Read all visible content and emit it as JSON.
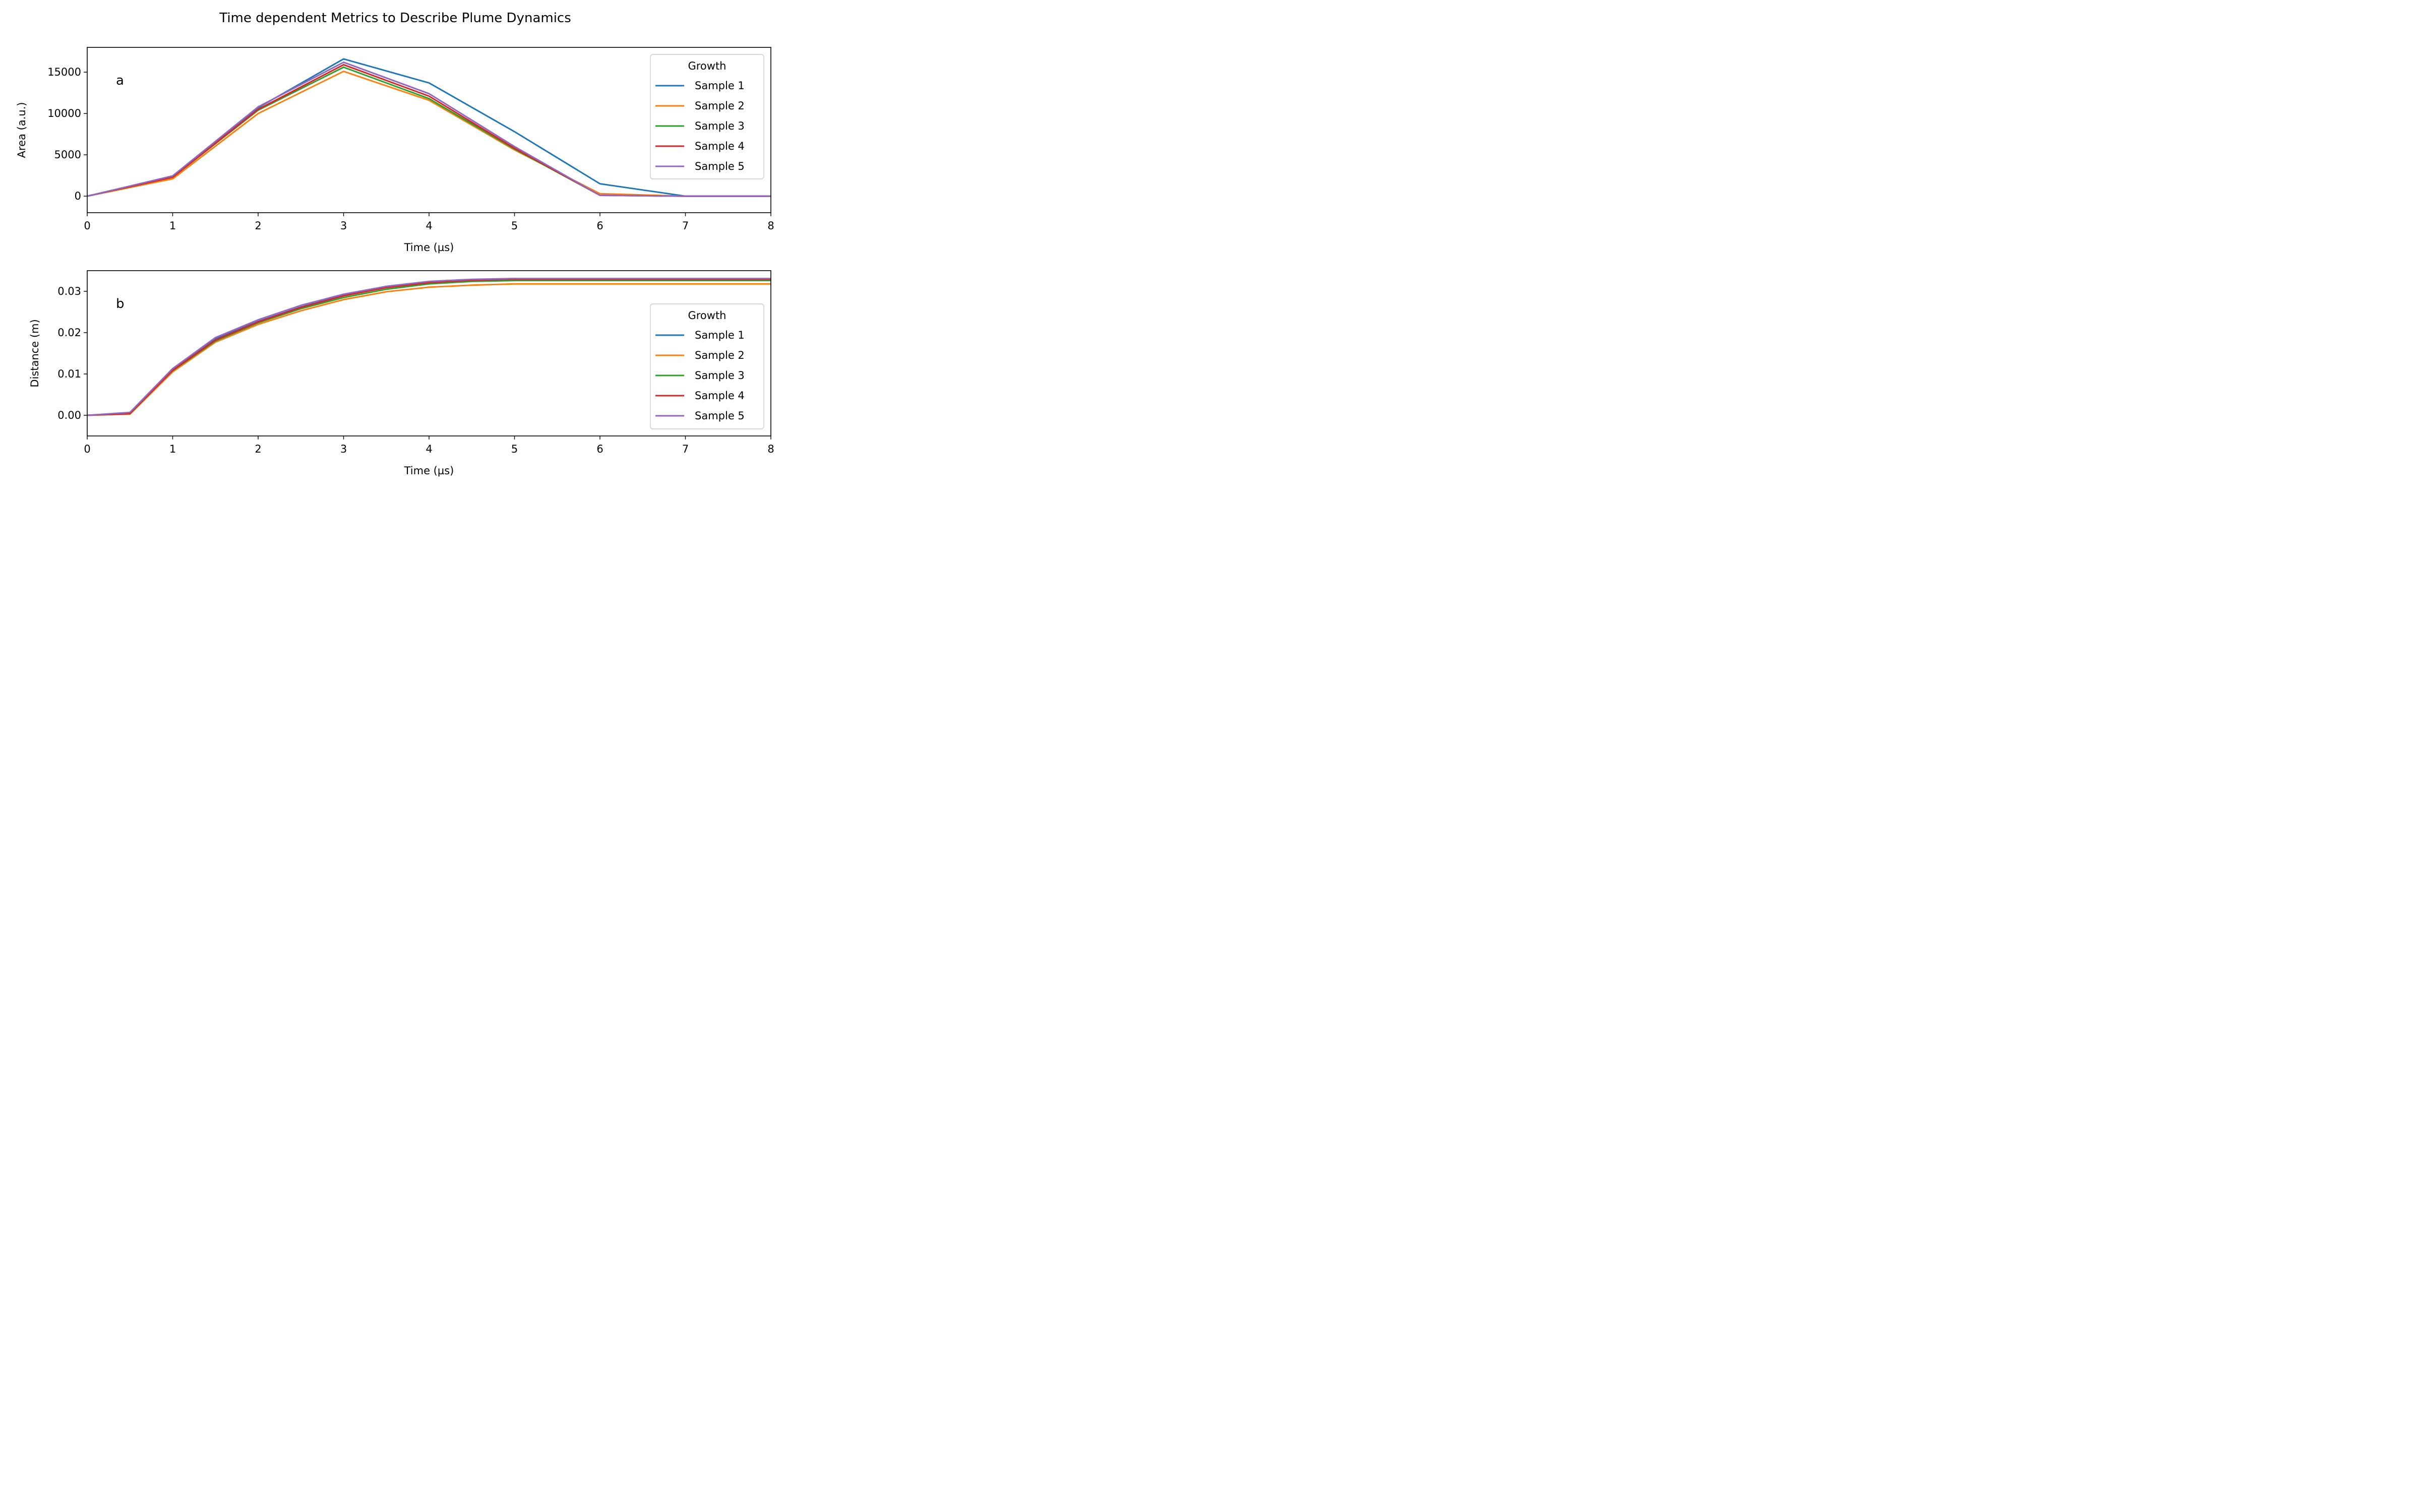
{
  "figure": {
    "title": "Time dependent Metrics to Describe Plume Dynamics"
  },
  "chart_data": [
    {
      "type": "line",
      "panel_label": "a",
      "xlabel": "Time (µs)",
      "ylabel": "Area (a.u.)",
      "xlim": [
        0,
        8
      ],
      "ylim": [
        -2000,
        18000
      ],
      "xticks": [
        "0",
        "1",
        "2",
        "3",
        "4",
        "5",
        "6",
        "7",
        "8"
      ],
      "yticks": [
        "0",
        "5000",
        "10000",
        "15000"
      ],
      "grid": false,
      "legend": {
        "title": "Growth",
        "placement": "upper right"
      },
      "x": [
        0,
        1,
        2,
        3,
        4,
        5,
        6,
        7,
        8
      ],
      "series": [
        {
          "name": "Sample 1",
          "color": "#1f77b4",
          "values": [
            0,
            2400,
            10700,
            16600,
            13700,
            7800,
            1500,
            0,
            0
          ]
        },
        {
          "name": "Sample 2",
          "color": "#ff7f0e",
          "values": [
            0,
            2100,
            10000,
            15100,
            11600,
            5600,
            300,
            0,
            0
          ]
        },
        {
          "name": "Sample 3",
          "color": "#2ca02c",
          "values": [
            0,
            2300,
            10400,
            15600,
            11800,
            5700,
            100,
            0,
            0
          ]
        },
        {
          "name": "Sample 4",
          "color": "#d62728",
          "values": [
            0,
            2300,
            10500,
            15900,
            12100,
            5800,
            100,
            0,
            0
          ]
        },
        {
          "name": "Sample 5",
          "color": "#9467bd",
          "values": [
            0,
            2450,
            10800,
            16200,
            12400,
            6000,
            100,
            0,
            0
          ]
        }
      ]
    },
    {
      "type": "line",
      "panel_label": "b",
      "xlabel": "Time (µs)",
      "ylabel": "Distance (m)",
      "xlim": [
        0,
        8
      ],
      "ylim": [
        -0.005,
        0.035
      ],
      "xticks": [
        "0",
        "1",
        "2",
        "3",
        "4",
        "5",
        "6",
        "7",
        "8"
      ],
      "yticks": [
        "0.00",
        "0.01",
        "0.02",
        "0.03"
      ],
      "grid": false,
      "legend": {
        "title": "Growth",
        "placement": "right"
      },
      "x": [
        0,
        0.5,
        1,
        1.5,
        2,
        2.5,
        3,
        3.5,
        4,
        4.5,
        5,
        5.5,
        6,
        6.5,
        7,
        7.5,
        8
      ],
      "series": [
        {
          "name": "Sample 1",
          "color": "#1f77b4",
          "values": [
            0,
            0.0006,
            0.011,
            0.0185,
            0.0227,
            0.0262,
            0.029,
            0.031,
            0.0322,
            0.0327,
            0.0329,
            0.0329,
            0.0329,
            0.0329,
            0.0329,
            0.0329,
            0.0329
          ]
        },
        {
          "name": "Sample 2",
          "color": "#ff7f0e",
          "values": [
            0,
            0.0003,
            0.0105,
            0.0177,
            0.022,
            0.0253,
            0.028,
            0.0299,
            0.031,
            0.0315,
            0.0318,
            0.0318,
            0.0318,
            0.0318,
            0.0318,
            0.0318,
            0.0318
          ]
        },
        {
          "name": "Sample 3",
          "color": "#2ca02c",
          "values": [
            0,
            0.0005,
            0.0108,
            0.018,
            0.0224,
            0.0258,
            0.0285,
            0.0305,
            0.0318,
            0.0324,
            0.0326,
            0.0326,
            0.0326,
            0.0326,
            0.0326,
            0.0326,
            0.0326
          ]
        },
        {
          "name": "Sample 4",
          "color": "#d62728",
          "values": [
            0,
            0.0004,
            0.0109,
            0.0182,
            0.0226,
            0.0261,
            0.0289,
            0.0309,
            0.0321,
            0.0327,
            0.0329,
            0.0329,
            0.0329,
            0.0329,
            0.0329,
            0.0329,
            0.0329
          ]
        },
        {
          "name": "Sample 5",
          "color": "#9467bd",
          "values": [
            0,
            0.0007,
            0.0113,
            0.0188,
            0.0231,
            0.0266,
            0.0293,
            0.0312,
            0.0324,
            0.0329,
            0.0331,
            0.0331,
            0.0331,
            0.0331,
            0.0331,
            0.0331,
            0.0331
          ]
        }
      ]
    }
  ]
}
